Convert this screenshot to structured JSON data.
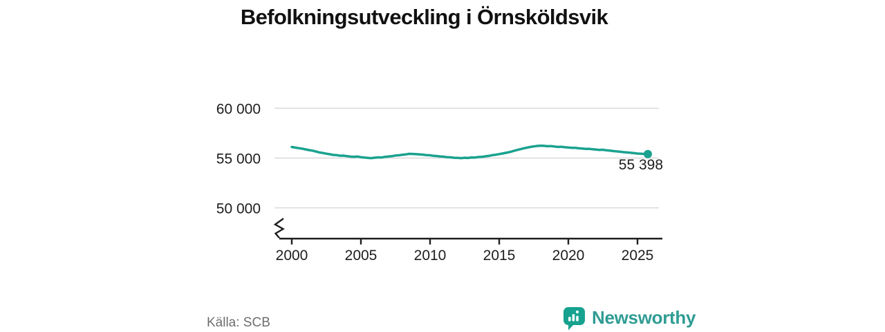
{
  "title": "Befolkningsutveckling i Örnsköldsvik",
  "source": "Källa: SCB",
  "brand": {
    "name": "Newsworthy",
    "text_color": "#2f9c93",
    "icon_color": "#17a28f"
  },
  "chart_data": {
    "type": "line",
    "title": "Befolkningsutveckling i Örnsköldsvik",
    "xlabel": "",
    "ylabel": "",
    "legend": null,
    "grid": true,
    "axis_break": true,
    "line_color": "#1aa28f",
    "grid_color": "#d9d9d9",
    "axis_color": "#1d1d1d",
    "x_range": [
      2000,
      2025.75
    ],
    "ylim_visible": [
      49000,
      61500
    ],
    "x_ticks": [
      2000,
      2005,
      2010,
      2015,
      2020,
      2025
    ],
    "y_ticks": [
      {
        "label": "60 000",
        "value": 60000
      },
      {
        "label": "55 000",
        "value": 55000
      },
      {
        "label": "50 000",
        "value": 50000
      }
    ],
    "end_label": "55 398",
    "end_value": 55398,
    "points": [
      [
        2000.0,
        56110
      ],
      [
        2000.25,
        56050
      ],
      [
        2000.5,
        55990
      ],
      [
        2000.75,
        55945
      ],
      [
        2001.0,
        55870
      ],
      [
        2001.25,
        55800
      ],
      [
        2001.5,
        55745
      ],
      [
        2001.75,
        55650
      ],
      [
        2002.0,
        55565
      ],
      [
        2002.25,
        55505
      ],
      [
        2002.5,
        55435
      ],
      [
        2002.75,
        55385
      ],
      [
        2003.0,
        55315
      ],
      [
        2003.25,
        55290
      ],
      [
        2003.5,
        55235
      ],
      [
        2003.75,
        55245
      ],
      [
        2004.0,
        55190
      ],
      [
        2004.25,
        55145
      ],
      [
        2004.5,
        55120
      ],
      [
        2004.75,
        55150
      ],
      [
        2005.0,
        55090
      ],
      [
        2005.25,
        55050
      ],
      [
        2005.5,
        55015
      ],
      [
        2005.75,
        54990
      ],
      [
        2006.0,
        55035
      ],
      [
        2006.25,
        55070
      ],
      [
        2006.5,
        55055
      ],
      [
        2006.75,
        55125
      ],
      [
        2007.0,
        55160
      ],
      [
        2007.25,
        55190
      ],
      [
        2007.5,
        55255
      ],
      [
        2007.75,
        55280
      ],
      [
        2008.0,
        55335
      ],
      [
        2008.25,
        55370
      ],
      [
        2008.5,
        55425
      ],
      [
        2008.75,
        55410
      ],
      [
        2009.0,
        55390
      ],
      [
        2009.25,
        55365
      ],
      [
        2009.5,
        55340
      ],
      [
        2009.75,
        55290
      ],
      [
        2010.0,
        55280
      ],
      [
        2010.25,
        55225
      ],
      [
        2010.5,
        55200
      ],
      [
        2010.75,
        55150
      ],
      [
        2011.0,
        55140
      ],
      [
        2011.25,
        55085
      ],
      [
        2011.5,
        55070
      ],
      [
        2011.75,
        55030
      ],
      [
        2012.0,
        55020
      ],
      [
        2012.25,
        54995
      ],
      [
        2012.5,
        55030
      ],
      [
        2012.75,
        55010
      ],
      [
        2013.0,
        55060
      ],
      [
        2013.25,
        55050
      ],
      [
        2013.5,
        55105
      ],
      [
        2013.75,
        55115
      ],
      [
        2014.0,
        55175
      ],
      [
        2014.25,
        55215
      ],
      [
        2014.5,
        55290
      ],
      [
        2014.75,
        55330
      ],
      [
        2015.0,
        55395
      ],
      [
        2015.25,
        55455
      ],
      [
        2015.5,
        55530
      ],
      [
        2015.75,
        55600
      ],
      [
        2016.0,
        55700
      ],
      [
        2016.25,
        55795
      ],
      [
        2016.5,
        55885
      ],
      [
        2016.75,
        55965
      ],
      [
        2017.0,
        56045
      ],
      [
        2017.25,
        56115
      ],
      [
        2017.5,
        56170
      ],
      [
        2017.75,
        56215
      ],
      [
        2018.0,
        56245
      ],
      [
        2018.25,
        56220
      ],
      [
        2018.5,
        56190
      ],
      [
        2018.75,
        56200
      ],
      [
        2019.0,
        56150
      ],
      [
        2019.25,
        56120
      ],
      [
        2019.5,
        56130
      ],
      [
        2019.75,
        56080
      ],
      [
        2020.0,
        56060
      ],
      [
        2020.25,
        56020
      ],
      [
        2020.5,
        56030
      ],
      [
        2020.75,
        55980
      ],
      [
        2021.0,
        55950
      ],
      [
        2021.25,
        55920
      ],
      [
        2021.5,
        55930
      ],
      [
        2021.75,
        55880
      ],
      [
        2022.0,
        55850
      ],
      [
        2022.25,
        55820
      ],
      [
        2022.5,
        55830
      ],
      [
        2022.75,
        55780
      ],
      [
        2023.0,
        55740
      ],
      [
        2023.25,
        55700
      ],
      [
        2023.5,
        55670
      ],
      [
        2023.75,
        55630
      ],
      [
        2024.0,
        55590
      ],
      [
        2024.25,
        55560
      ],
      [
        2024.5,
        55530
      ],
      [
        2024.75,
        55490
      ],
      [
        2025.0,
        55450
      ],
      [
        2025.25,
        55430
      ],
      [
        2025.5,
        55410
      ],
      [
        2025.75,
        55398
      ]
    ]
  }
}
